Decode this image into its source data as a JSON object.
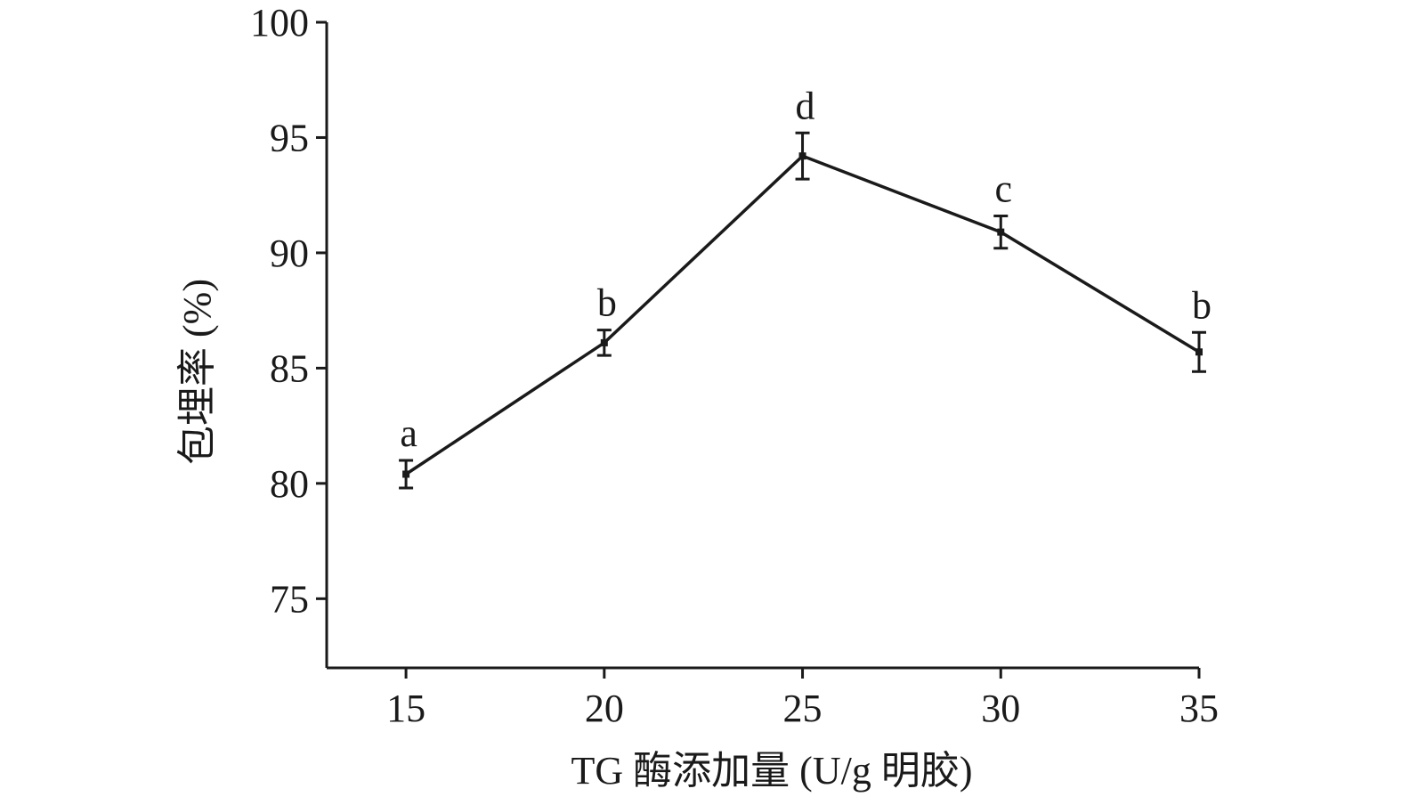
{
  "chart_data": {
    "type": "line",
    "x": [
      15,
      20,
      25,
      30,
      35
    ],
    "y": [
      80.4,
      86.1,
      94.2,
      90.9,
      85.7
    ],
    "error": [
      0.6,
      0.55,
      1.0,
      0.7,
      0.85
    ],
    "significance": [
      "a",
      "b",
      "d",
      "c",
      "b"
    ],
    "xlabel": "TG 酶添加量 (U/g 明胶)",
    "ylabel": "包埋率 (%)",
    "xticks": [
      15,
      20,
      25,
      30,
      35
    ],
    "yticks": [
      75,
      80,
      85,
      90,
      95,
      100
    ],
    "xlim": [
      13,
      35
    ],
    "ylim": [
      72,
      100
    ],
    "grid": false,
    "line_color": "#1a1a1a"
  }
}
